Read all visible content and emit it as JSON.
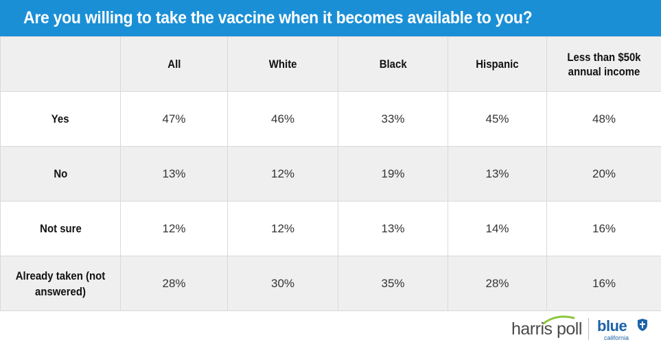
{
  "title": "Are you willing to take the vaccine when it becomes available to you?",
  "colors": {
    "title_bar": "#1a8fd6",
    "shaded_row": "#efefef",
    "brand_blue": "#1a62a8"
  },
  "footer": {
    "harris_logo_text": "harris poll",
    "blue_logo_text": "blue",
    "blue_logo_sub": "california",
    "harris_icon": "harris-swoosh-icon",
    "blue_icon": "blue-shield-icon"
  },
  "chart_data": {
    "type": "table",
    "title": "Are you willing to take the vaccine when it becomes available to you?",
    "columns": [
      "All",
      "White",
      "Black",
      "Hispanic",
      "Less than $50k annual income"
    ],
    "rows": [
      {
        "label": "Yes",
        "values": [
          "47%",
          "46%",
          "33%",
          "45%",
          "48%"
        ]
      },
      {
        "label": "No",
        "values": [
          "13%",
          "12%",
          "19%",
          "13%",
          "20%"
        ]
      },
      {
        "label": "Not sure",
        "values": [
          "12%",
          "12%",
          "13%",
          "14%",
          "16%"
        ]
      },
      {
        "label": "Already taken (not answered)",
        "values": [
          "28%",
          "30%",
          "35%",
          "28%",
          "16%"
        ]
      }
    ]
  }
}
